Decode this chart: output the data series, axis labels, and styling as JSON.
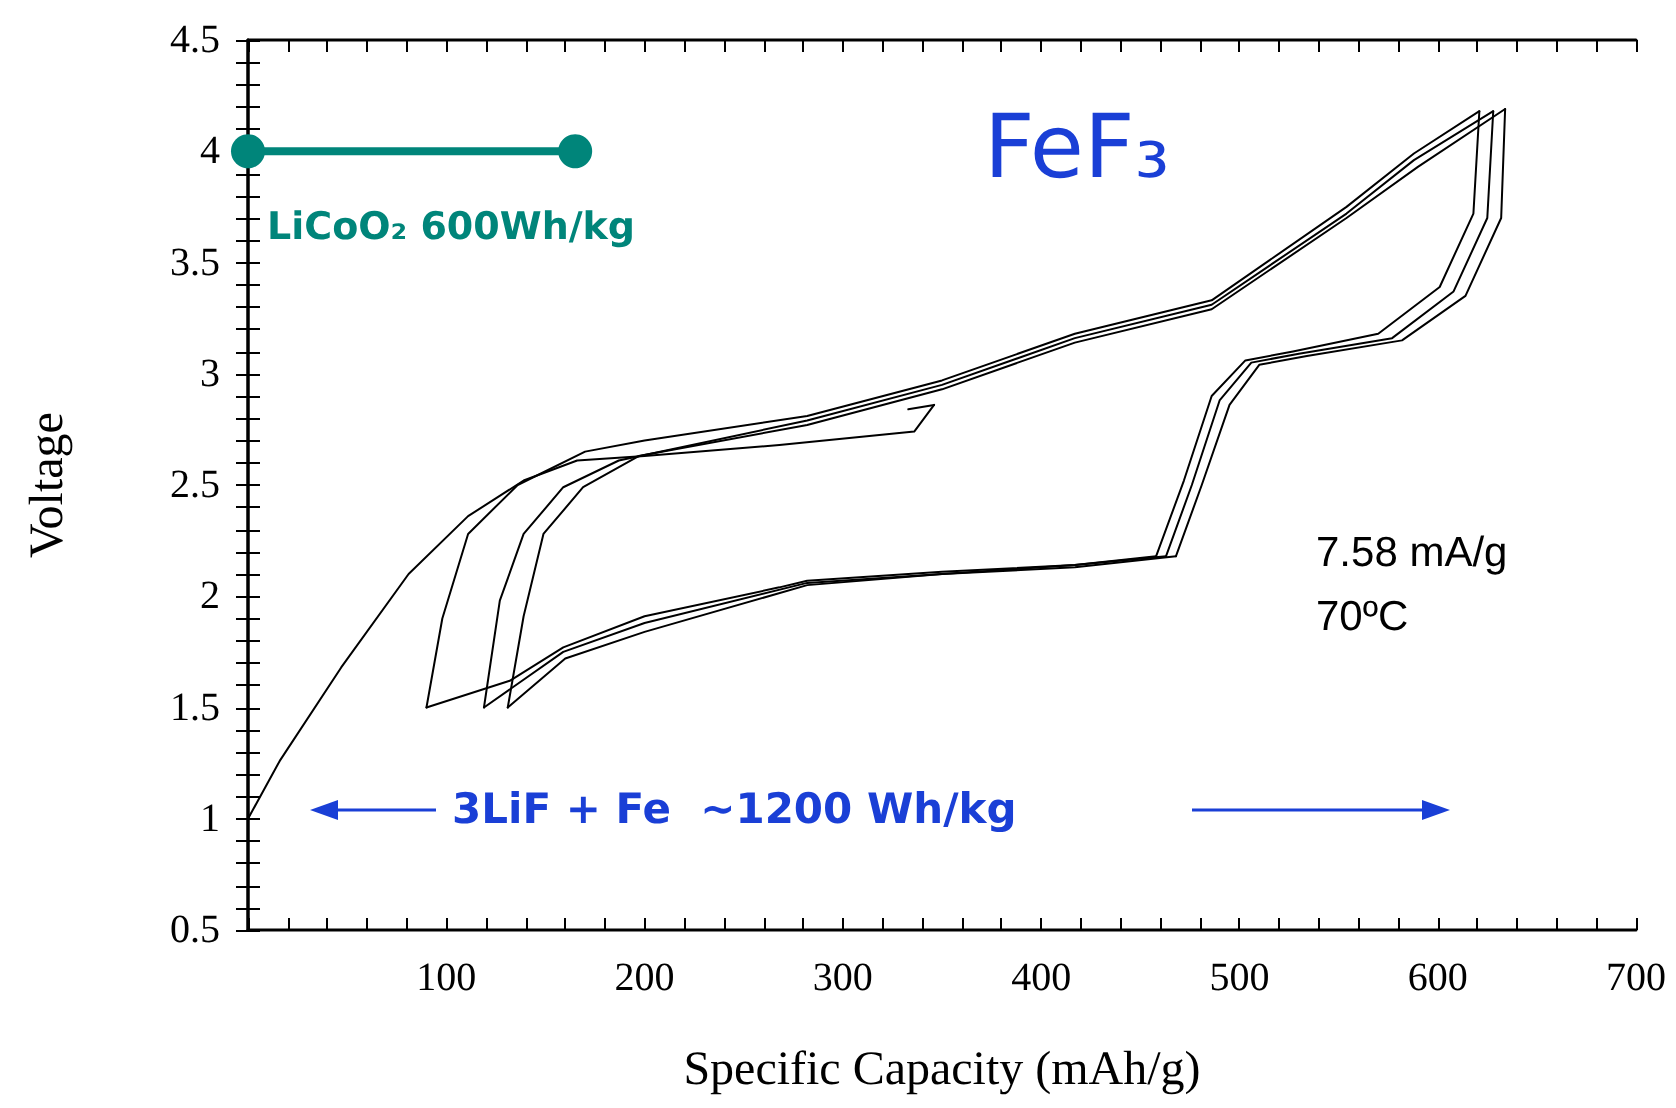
{
  "chart_data": {
    "type": "line",
    "xlabel": "Specific Capacity (mAh/g)",
    "ylabel": "Voltage",
    "annotations": [
      "FeF₃",
      "7.58 mA/g",
      "70ºC",
      "3LiF + Fe  ~1200 Wh/kg"
    ],
    "xlim": [
      0,
      700
    ],
    "ylim": [
      0.5,
      4.5
    ],
    "xticks": [
      {
        "value": 0,
        "label": null
      },
      {
        "value": 20,
        "label": null
      },
      {
        "value": 40,
        "label": null
      },
      {
        "value": 60,
        "label": null
      },
      {
        "value": 80,
        "label": null
      },
      100,
      {
        "value": 120,
        "label": null
      },
      {
        "value": 140,
        "label": null
      },
      {
        "value": 160,
        "label": null
      },
      {
        "value": 180,
        "label": null
      },
      200,
      {
        "value": 220,
        "label": null
      },
      {
        "value": 240,
        "label": null
      },
      {
        "value": 260,
        "label": null
      },
      {
        "value": 280,
        "label": null
      },
      300,
      {
        "value": 320,
        "label": null
      },
      {
        "value": 340,
        "label": null
      },
      {
        "value": 360,
        "label": null
      },
      {
        "value": 380,
        "label": null
      },
      400,
      {
        "value": 420,
        "label": null
      },
      {
        "value": 440,
        "label": null
      },
      {
        "value": 460,
        "label": null
      },
      {
        "value": 480,
        "label": null
      },
      500,
      {
        "value": 520,
        "label": null
      },
      {
        "value": 540,
        "label": null
      },
      {
        "value": 560,
        "label": null
      },
      {
        "value": 580,
        "label": null
      },
      600,
      {
        "value": 620,
        "label": null
      },
      {
        "value": 640,
        "label": null
      },
      {
        "value": 660,
        "label": null
      },
      {
        "value": 680,
        "label": null
      },
      700
    ],
    "yticks": [
      0.5,
      {
        "value": 0.6,
        "label": null
      },
      {
        "value": 0.7,
        "label": null
      },
      {
        "value": 0.8,
        "label": null
      },
      {
        "value": 0.9,
        "label": null
      },
      1,
      {
        "value": 1.1,
        "label": null
      },
      {
        "value": 1.2,
        "label": null
      },
      {
        "value": 1.3,
        "label": null
      },
      {
        "value": 1.4,
        "label": null
      },
      1.5,
      {
        "value": 1.6,
        "label": null
      },
      {
        "value": 1.7,
        "label": null
      },
      {
        "value": 1.8,
        "label": null
      },
      {
        "value": 1.9,
        "label": null
      },
      2,
      {
        "value": 2.1,
        "label": null
      },
      {
        "value": 2.2,
        "label": null
      },
      {
        "value": 2.3,
        "label": null
      },
      {
        "value": 2.4,
        "label": null
      },
      2.5,
      {
        "value": 2.6,
        "label": null
      },
      {
        "value": 2.7,
        "label": null
      },
      {
        "value": 2.8,
        "label": null
      },
      {
        "value": 2.9,
        "label": null
      },
      3,
      {
        "value": 3.1,
        "label": null
      },
      {
        "value": 3.2,
        "label": null
      },
      {
        "value": 3.3,
        "label": null
      },
      {
        "value": 3.4,
        "label": null
      },
      3.5,
      {
        "value": 3.6,
        "label": null
      },
      {
        "value": 3.7,
        "label": null
      },
      {
        "value": 3.8,
        "label": null
      },
      {
        "value": 3.9,
        "label": null
      },
      4,
      {
        "value": 4.1,
        "label": null
      },
      {
        "value": 4.2,
        "label": null
      },
      {
        "value": 4.3,
        "label": null
      },
      {
        "value": 4.4,
        "label": null
      },
      4.5
    ],
    "grid": false,
    "legend": false,
    "line_style": "solid",
    "series": [
      {
        "color": "#000000",
        "marker": "none",
        "x": [
          0,
          16,
          47,
          81,
          111,
          139,
          166,
          200,
          268,
          336,
          346
        ],
        "values": [
          1.0,
          1.26,
          1.68,
          2.1,
          2.36,
          2.52,
          2.61,
          2.63,
          2.68,
          2.74,
          2.86
        ]
      },
      {
        "color": "#000000",
        "marker": "none",
        "x": [
          333,
          346
        ],
        "values": [
          2.84,
          2.86
        ]
      },
      {
        "color": "#000000",
        "marker": "none",
        "x": [
          90,
          132,
          159,
          200,
          268,
          282,
          350,
          417,
          458
        ],
        "values": [
          1.5,
          1.62,
          1.77,
          1.91,
          2.04,
          2.07,
          2.11,
          2.14,
          2.18
        ]
      },
      {
        "color": "#000000",
        "marker": "none",
        "x": [
          90,
          98,
          111,
          136,
          170,
          200,
          282,
          350,
          417,
          486,
          554,
          588,
          621
        ],
        "values": [
          1.5,
          1.9,
          2.28,
          2.5,
          2.65,
          2.7,
          2.81,
          2.97,
          3.18,
          3.33,
          3.75,
          3.99,
          4.18
        ]
      },
      {
        "color": "#000000",
        "marker": "none",
        "x": [
          458,
          472,
          486,
          503,
          527,
          570,
          601,
          618,
          621
        ],
        "values": [
          2.18,
          2.52,
          2.9,
          3.06,
          3.1,
          3.18,
          3.39,
          3.72,
          4.18
        ]
      },
      {
        "color": "#000000",
        "marker": "none",
        "x": [
          119,
          159,
          200,
          282,
          350,
          417,
          463
        ],
        "values": [
          1.5,
          1.75,
          1.88,
          2.06,
          2.1,
          2.14,
          2.18
        ]
      },
      {
        "color": "#000000",
        "marker": "none",
        "x": [
          119,
          127,
          139,
          159,
          187,
          282,
          350,
          417,
          486,
          554,
          588,
          628
        ],
        "values": [
          1.5,
          1.98,
          2.28,
          2.49,
          2.61,
          2.79,
          2.95,
          3.16,
          3.31,
          3.72,
          3.96,
          4.18
        ]
      },
      {
        "color": "#000000",
        "marker": "none",
        "x": [
          463,
          476,
          490,
          506,
          530,
          577,
          608,
          625,
          628
        ],
        "values": [
          2.18,
          2.5,
          2.88,
          3.05,
          3.09,
          3.16,
          3.37,
          3.7,
          4.18
        ]
      },
      {
        "color": "#000000",
        "marker": "none",
        "x": [
          131,
          160,
          200,
          282,
          350,
          417,
          468
        ],
        "values": [
          1.5,
          1.72,
          1.84,
          2.05,
          2.1,
          2.13,
          2.18
        ]
      },
      {
        "color": "#000000",
        "marker": "none",
        "x": [
          131,
          139,
          149,
          169,
          197,
          282,
          350,
          417,
          486,
          554,
          590,
          634
        ],
        "values": [
          1.5,
          1.91,
          2.28,
          2.49,
          2.63,
          2.77,
          2.93,
          3.14,
          3.29,
          3.7,
          3.93,
          4.19
        ]
      },
      {
        "color": "#000000",
        "marker": "none",
        "x": [
          468,
          481,
          495,
          510,
          534,
          582,
          614,
          632,
          634
        ],
        "values": [
          2.18,
          2.5,
          2.86,
          3.04,
          3.08,
          3.15,
          3.35,
          3.7,
          4.19
        ]
      },
      {
        "name": "LiCoO₂ 600Wh/kg",
        "color": "#00857a",
        "marker": "circle",
        "x": [
          0,
          165
        ],
        "values": [
          4,
          4
        ]
      }
    ]
  }
}
